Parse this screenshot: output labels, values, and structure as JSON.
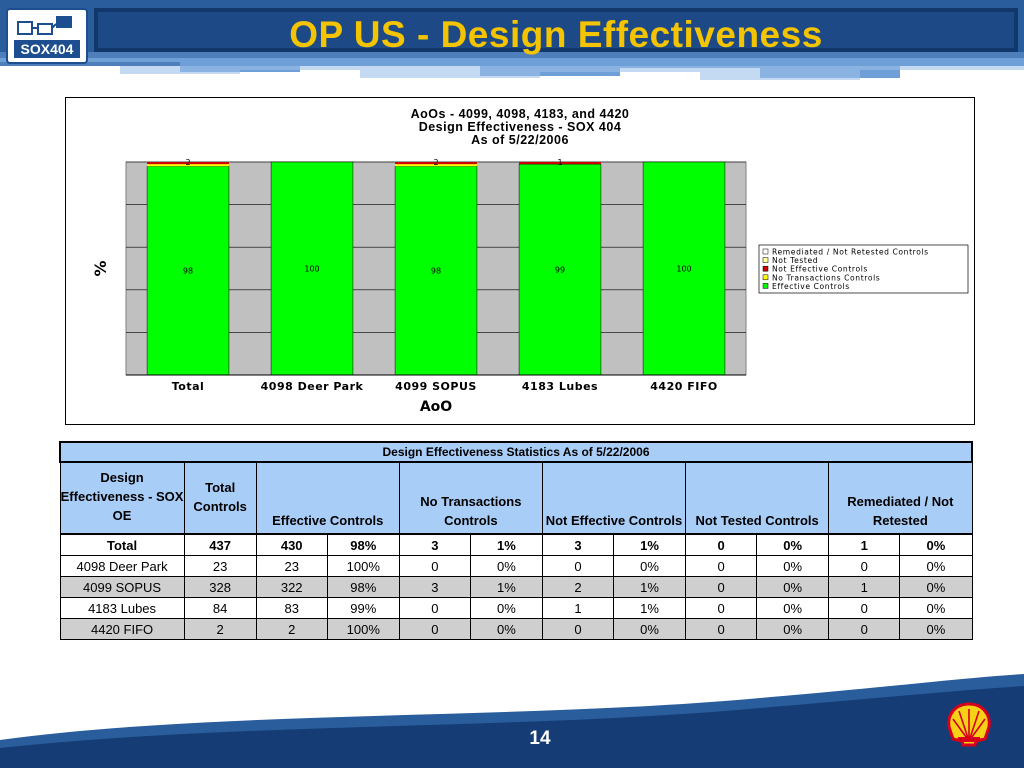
{
  "header": {
    "logo_text": "SOX404",
    "title": "OP US - Design Effectiveness"
  },
  "chart_data": {
    "type": "bar",
    "stacked": true,
    "title": [
      "AoOs - 4099, 4098, 4183, and 4420",
      "Design Effectiveness - SOX 404",
      "As of 5/22/2006"
    ],
    "xlabel": "AoO",
    "ylabel": "%",
    "ylim": [
      0,
      100
    ],
    "grid": true,
    "legend_position": "right",
    "categories": [
      "Total",
      "4098 Deer Park",
      "4099 SOPUS",
      "4183 Lubes",
      "4420 FIFO"
    ],
    "series": [
      {
        "name": "Effective Controls",
        "color": "#00ff00",
        "values": [
          98,
          100,
          98,
          99,
          100
        ],
        "labels": [
          "98",
          "100",
          "98",
          "99",
          "100"
        ]
      },
      {
        "name": "No Transactions Controls",
        "color": "#ffff00",
        "values": [
          1,
          0,
          1,
          0,
          0
        ]
      },
      {
        "name": "Not Effective Controls",
        "color": "#cc0000",
        "values": [
          1,
          0,
          1,
          1,
          0
        ]
      },
      {
        "name": "Not Tested",
        "color": "#ffff99",
        "values": [
          0,
          0,
          0,
          0,
          0
        ]
      },
      {
        "name": "Remediated / Not Retested Controls",
        "color": "#ffffff",
        "values": [
          0,
          0,
          0,
          0,
          0
        ]
      }
    ],
    "top_labels": [
      "2",
      "",
      "2",
      "1",
      ""
    ],
    "legend_order": [
      "Remediated / Not Retested Controls",
      "Not Tested",
      "Not Effective Controls",
      "No Transactions Controls",
      "Effective Controls"
    ]
  },
  "table": {
    "title": "Design Effectiveness Statistics As of 5/22/2006",
    "headers": {
      "aoo": "Design Effectiveness - SOX OE",
      "total": "Total Controls",
      "effective": "Effective Controls",
      "no_trans": "No Transactions Controls",
      "not_effective": "Not Effective Controls",
      "not_tested": "Not Tested Controls",
      "remediated": "Remediated / Not Retested"
    },
    "rows": [
      [
        "Total",
        "437",
        "430",
        "98%",
        "3",
        "1%",
        "3",
        "1%",
        "0",
        "0%",
        "1",
        "0%"
      ],
      [
        "4098 Deer Park",
        "23",
        "23",
        "100%",
        "0",
        "0%",
        "0",
        "0%",
        "0",
        "0%",
        "0",
        "0%"
      ],
      [
        "4099 SOPUS",
        "328",
        "322",
        "98%",
        "3",
        "1%",
        "2",
        "1%",
        "0",
        "0%",
        "1",
        "0%"
      ],
      [
        "4183 Lubes",
        "84",
        "83",
        "99%",
        "0",
        "0%",
        "1",
        "1%",
        "0",
        "0%",
        "0",
        "0%"
      ],
      [
        "4420 FIFO",
        "2",
        "2",
        "100%",
        "0",
        "0%",
        "0",
        "0%",
        "0",
        "0%",
        "0",
        "0%"
      ]
    ]
  },
  "footer": {
    "page_number": "14"
  },
  "colors": {
    "header_blue": "#1d4e8f",
    "title_yellow": "#f5c400",
    "table_header": "#a8cdf7",
    "row_shade": "#cfcfcf",
    "plot_bg": "#c0c0c0"
  }
}
